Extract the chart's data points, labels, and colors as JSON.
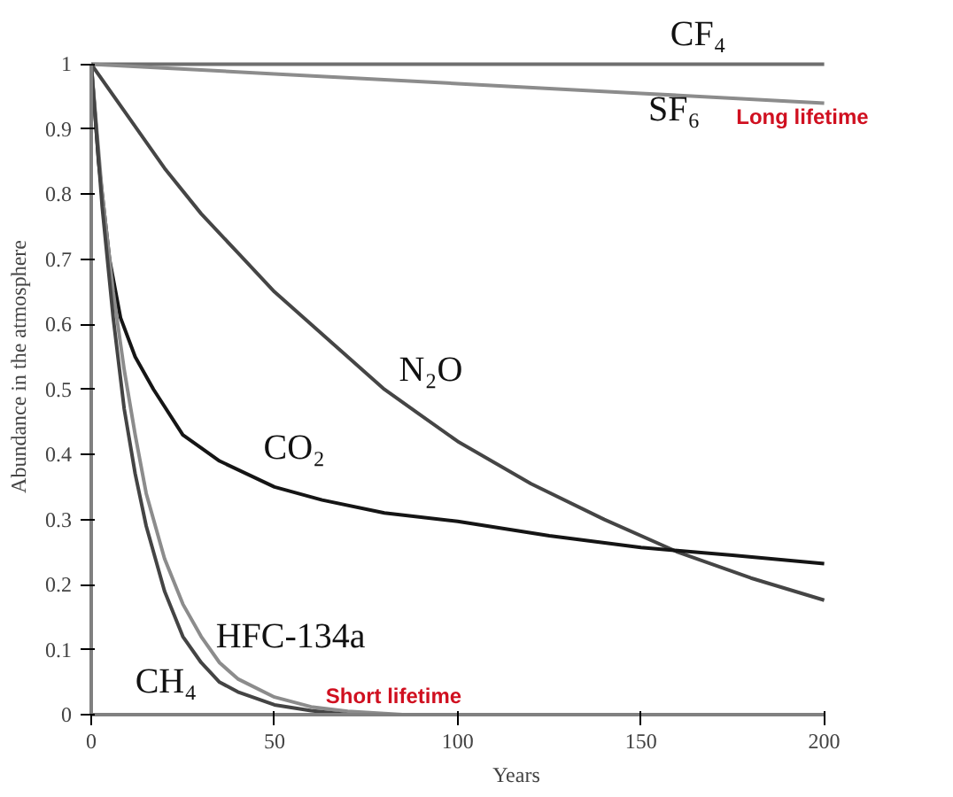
{
  "chart_data": {
    "type": "line",
    "xlabel": "Years",
    "ylabel": "Abundance in the atmosphere",
    "xlim": [
      0,
      200
    ],
    "ylim": [
      0,
      1
    ],
    "xticks": [
      0,
      50,
      100,
      150,
      200
    ],
    "yticks": [
      0,
      0.1,
      0.2,
      0.3,
      0.4,
      0.5,
      0.6,
      0.7,
      0.8,
      0.9,
      1
    ],
    "grid": false,
    "marker": "none",
    "line_style": "solid",
    "series": [
      {
        "name": "CF₄",
        "color": "#6e6e6e",
        "x": [
          0,
          100,
          200
        ],
        "values": [
          1,
          1,
          1
        ]
      },
      {
        "name": "SF₆",
        "color": "#8c8c8c",
        "x": [
          0,
          50,
          100,
          150,
          200
        ],
        "values": [
          1,
          0.985,
          0.97,
          0.955,
          0.94
        ]
      },
      {
        "name": "N₂O",
        "color": "#454545",
        "x": [
          0,
          10,
          20,
          30,
          40,
          50,
          60,
          70,
          80,
          90,
          100,
          120,
          140,
          160,
          180,
          200
        ],
        "values": [
          1,
          0.92,
          0.84,
          0.77,
          0.71,
          0.65,
          0.6,
          0.55,
          0.5,
          0.46,
          0.42,
          0.355,
          0.3,
          0.25,
          0.21,
          0.176
        ]
      },
      {
        "name": "CO₂",
        "color": "#151515",
        "x": [
          0,
          2,
          5,
          8,
          12,
          17,
          25,
          35,
          50,
          63,
          80,
          100,
          125,
          150,
          175,
          200
        ],
        "values": [
          1,
          0.85,
          0.7,
          0.61,
          0.55,
          0.5,
          0.43,
          0.39,
          0.35,
          0.33,
          0.31,
          0.297,
          0.275,
          0.257,
          0.245,
          0.232
        ]
      },
      {
        "name": "HFC-134a",
        "color": "#8c8c8c",
        "x": [
          0,
          3,
          6,
          9,
          12,
          15,
          20,
          25,
          30,
          35,
          40,
          50,
          60,
          70,
          85
        ],
        "values": [
          1,
          0.8,
          0.65,
          0.53,
          0.43,
          0.34,
          0.24,
          0.17,
          0.12,
          0.08,
          0.055,
          0.027,
          0.012,
          0.005,
          0
        ]
      },
      {
        "name": "CH₄",
        "color": "#444444",
        "x": [
          0,
          3,
          6,
          9,
          12,
          15,
          20,
          25,
          30,
          35,
          40,
          50,
          60,
          70
        ],
        "values": [
          1,
          0.78,
          0.61,
          0.47,
          0.37,
          0.29,
          0.19,
          0.12,
          0.08,
          0.05,
          0.035,
          0.015,
          0.006,
          0
        ]
      }
    ],
    "annotations": [
      "Long lifetime",
      "Short lifetime"
    ]
  }
}
